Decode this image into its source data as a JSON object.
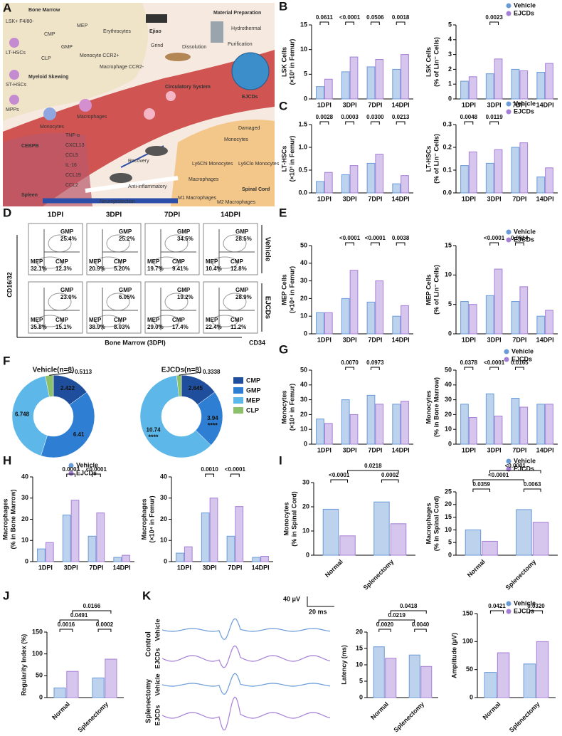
{
  "panel_letters": [
    "A",
    "B",
    "C",
    "D",
    "E",
    "F",
    "G",
    "H",
    "I",
    "J",
    "K"
  ],
  "legend": [
    {
      "name": "Vehicle",
      "color": "#6a9bd8"
    },
    {
      "name": "EJCDs",
      "color": "#a57fd6"
    }
  ],
  "panel_a": {
    "labels": [
      "Bone Marrow",
      "LSK+ F4/80-",
      "LT-HSCs",
      "ST-HSCs",
      "MPPs",
      "CMP",
      "CLP",
      "GMP",
      "MEP",
      "Erythrocytes",
      "Monocyte CCR2+",
      "Macrophage CCR2-",
      "Myeloid Skewing",
      "Macrophages",
      "Monocytes",
      "Circulatory System",
      "Ejiao",
      "Material Preparation",
      "Grind",
      "Dissolution",
      "Hydrothermal",
      "Purification",
      "EJCDs",
      "CEBPB",
      "TNF-α",
      "CXCL13",
      "CCL5",
      "IL-16",
      "CCL19",
      "CCL2",
      "Spleen",
      "Recovery",
      "Anti-inflammatory",
      "Neuroprotection",
      "Damaged",
      "Monocytes",
      "Ly6Chi Monocytes",
      "Ly6Clo Monocytes",
      "Macrophages",
      "M1 Macrophages",
      "M2 Macrophages",
      "Spinal Cord"
    ]
  },
  "flow": {
    "columns": [
      "1DPI",
      "3DPI",
      "7DPI",
      "14DPI"
    ],
    "rows": [
      "Vehicle",
      "EJCDs"
    ],
    "gates": [
      "GMP",
      "MEP",
      "CMP"
    ],
    "values": [
      [
        [
          "25.4%",
          "32.1%",
          "12.3%"
        ],
        [
          "25.2%",
          "20.9%",
          "5.20%"
        ],
        [
          "34.5%",
          "19.7%",
          "9.41%"
        ],
        [
          "28.5%",
          "10.4%",
          "12.8%"
        ]
      ],
      [
        [
          "23.0%",
          "35.8%",
          "15.1%"
        ],
        [
          "6.05%",
          "38.9%",
          "8.03%"
        ],
        [
          "19.2%",
          "29.0%",
          "17.4%"
        ],
        [
          "28.9%",
          "22.4%",
          "11.2%"
        ]
      ]
    ],
    "y_label": "CD16/32",
    "x_label": "CD34",
    "caption": "Bone Marrow (3DPI)"
  },
  "traces": {
    "scale_y": "40 μV",
    "scale_x": "20 ms",
    "groups": [
      "Control",
      "Splenectomy"
    ],
    "rows": [
      "Vehicle",
      "EJCDs"
    ]
  },
  "chart_data": [
    {
      "type": "bar",
      "ylabel": [
        "LSK Cells",
        "(×10³ in Femur)"
      ],
      "categories": [
        "1DPI",
        "3DPI",
        "7DPI",
        "14DPI"
      ],
      "series": [
        {
          "values": [
            2.5,
            5.5,
            6.5,
            6
          ]
        },
        {
          "values": [
            4,
            8.5,
            8,
            9
          ]
        }
      ],
      "ylim": [
        0,
        15
      ],
      "yticks": [
        0,
        5,
        10,
        15
      ],
      "pvalues": [
        "0.0611",
        "<0.0001",
        "0.0506",
        "0.0018"
      ]
    },
    {
      "type": "bar",
      "ylabel": [
        "LSK Cells",
        "(% of Lin⁻ Cells)"
      ],
      "categories": [
        "1DPI",
        "3DPI",
        "7DPI",
        "14DPI"
      ],
      "series": [
        {
          "values": [
            1.2,
            1.7,
            2,
            1.8
          ]
        },
        {
          "values": [
            1.5,
            2.7,
            1.9,
            2.4
          ]
        }
      ],
      "ylim": [
        0,
        5
      ],
      "yticks": [
        0,
        1,
        2,
        3,
        4,
        5
      ],
      "pvalues": [
        null,
        "0.0023",
        null,
        null
      ]
    },
    {
      "type": "bar",
      "ylabel": [
        "LT-HSCs",
        "(×10³ in Femur)"
      ],
      "categories": [
        "1DPI",
        "3DPI",
        "7DPI",
        "14DPI"
      ],
      "series": [
        {
          "values": [
            0.25,
            0.4,
            0.65,
            0.2
          ]
        },
        {
          "values": [
            0.45,
            0.6,
            0.85,
            0.38
          ]
        }
      ],
      "ylim": [
        0,
        1.5
      ],
      "yticks": [
        {
          "value": 0,
          "label": "0.0"
        },
        0.5,
        {
          "value": 1,
          "label": "1.0"
        },
        1.5
      ],
      "pvalues": [
        "0.0028",
        "0.0003",
        "0.0300",
        "0.0213"
      ]
    },
    {
      "type": "bar",
      "ylabel": [
        "LT-HSCs",
        "(% of Lin⁻ Cells)"
      ],
      "categories": [
        "1DPI",
        "3DPI",
        "7DPI",
        "14DPI"
      ],
      "series": [
        {
          "values": [
            0.12,
            0.13,
            0.2,
            0.07
          ]
        },
        {
          "values": [
            0.18,
            0.19,
            0.22,
            0.11
          ]
        }
      ],
      "ylim": [
        0,
        0.3
      ],
      "yticks": [
        {
          "value": 0,
          "label": "0.0"
        },
        0.1,
        0.2,
        0.3
      ],
      "pvalues": [
        "0.0048",
        "0.0119",
        null,
        null
      ]
    },
    {
      "type": "bar",
      "ylabel": [
        "MEP Cells",
        "(×10⁴ in Femur)"
      ],
      "categories": [
        "1DPI",
        "3DPI",
        "7DPI",
        "14DPI"
      ],
      "series": [
        {
          "values": [
            12,
            20,
            18,
            10
          ]
        },
        {
          "values": [
            12,
            36,
            30,
            16
          ]
        }
      ],
      "ylim": [
        0,
        50
      ],
      "yticks": [
        0,
        10,
        20,
        30,
        40,
        50
      ],
      "pvalues": [
        null,
        "<0.0001",
        "<0.0001",
        "0.0038"
      ]
    },
    {
      "type": "bar",
      "ylabel": [
        "MEP Cells",
        "(% of Lin⁻ Cells)"
      ],
      "categories": [
        "1DPI",
        "3DPI",
        "7DPI",
        "14DPI"
      ],
      "series": [
        {
          "values": [
            5.5,
            6.5,
            5.5,
            3
          ]
        },
        {
          "values": [
            5,
            11,
            8,
            4
          ]
        }
      ],
      "ylim": [
        0,
        15
      ],
      "yticks": [
        0,
        5,
        10,
        15
      ],
      "pvalues": [
        null,
        "<0.0001",
        "0.0014",
        null
      ]
    },
    {
      "type": "donut",
      "categories": [
        "CMP",
        "GMP",
        "MEP",
        "CLP"
      ],
      "colors": [
        "#1f4e9c",
        "#2e7fd3",
        "#5db7e8",
        "#8cc06a"
      ],
      "series": [
        {
          "name": "Vehicle(n=8)",
          "values": [
            2.422,
            6.41,
            6.748,
            0.5113
          ]
        },
        {
          "name": "EJCDs(n=8)",
          "values": [
            2.645,
            3.94,
            10.74,
            0.3338
          ]
        }
      ],
      "annotation": "****"
    },
    {
      "type": "bar",
      "ylabel": [
        "Monocytes",
        "(×10⁴ in Femur)"
      ],
      "categories": [
        "1DPI",
        "3DPI",
        "7DPI",
        "14DPI"
      ],
      "series": [
        {
          "values": [
            17,
            30,
            33,
            27
          ]
        },
        {
          "values": [
            14,
            20,
            27,
            29
          ]
        }
      ],
      "ylim": [
        0,
        50
      ],
      "yticks": [
        0,
        10,
        20,
        30,
        40,
        50
      ],
      "pvalues": [
        null,
        "0.0070",
        "0.0973",
        null
      ]
    },
    {
      "type": "bar",
      "ylabel": [
        "Monocytes",
        "(% in Bone Marrow)"
      ],
      "categories": [
        "1DPI",
        "3DPI",
        "7DPI",
        "14DPI"
      ],
      "series": [
        {
          "values": [
            27,
            34,
            31,
            27
          ]
        },
        {
          "values": [
            18,
            19,
            25,
            27
          ]
        }
      ],
      "ylim": [
        0,
        50
      ],
      "yticks": [
        0,
        10,
        20,
        30,
        40,
        50
      ],
      "pvalues": [
        "0.0378",
        "<0.0001",
        "0.0165",
        null
      ]
    },
    {
      "type": "bar",
      "ylabel": [
        "Macrophages",
        "(% in Bone Marrow)"
      ],
      "categories": [
        "1DPI",
        "3DPI",
        "7DPI",
        "14DPI"
      ],
      "series": [
        {
          "values": [
            6,
            22,
            12,
            2
          ]
        },
        {
          "values": [
            9,
            29,
            23,
            3
          ]
        }
      ],
      "ylim": [
        0,
        40
      ],
      "yticks": [
        0,
        10,
        20,
        30,
        40
      ],
      "pvalues": [
        null,
        "0.0003",
        "<0.0001",
        null
      ]
    },
    {
      "type": "bar",
      "ylabel": [
        "Macrophages",
        "(×10⁴ in Femur)"
      ],
      "categories": [
        "1DPI",
        "3DPI",
        "7DPI",
        "14DPI"
      ],
      "series": [
        {
          "values": [
            4,
            23,
            12,
            2
          ]
        },
        {
          "values": [
            7,
            30,
            26,
            2.5
          ]
        }
      ],
      "ylim": [
        0,
        40
      ],
      "yticks": [
        0,
        10,
        20,
        30,
        40
      ],
      "pvalues": [
        null,
        "0.0010",
        "<0.0001",
        null
      ]
    },
    {
      "type": "bar",
      "ylabel": [
        "Monocytes",
        "(% in Spinal Cord)"
      ],
      "categories": [
        "Normal",
        "Splenectomy"
      ],
      "series": [
        {
          "values": [
            19,
            22
          ]
        },
        {
          "values": [
            8,
            13
          ]
        }
      ],
      "ylim": [
        0,
        30
      ],
      "yticks": [
        0,
        10,
        20,
        30
      ],
      "pvalues": [
        "<0.0001",
        "0.0002"
      ],
      "series_pvalues": [
        null,
        "0.0218"
      ],
      "rotate_labels": true
    },
    {
      "type": "bar",
      "ylabel": [
        "Macrophages",
        "(% in Spinal Cord)"
      ],
      "categories": [
        "Normal",
        "Splenectomy"
      ],
      "series": [
        {
          "values": [
            10,
            18
          ]
        },
        {
          "values": [
            5.5,
            13
          ]
        }
      ],
      "ylim": [
        0,
        25
      ],
      "yticks": [
        0,
        5,
        10,
        15,
        20,
        25
      ],
      "pvalues": [
        "0.0359",
        "0.0063"
      ],
      "series_pvalues": [
        "<0.0001",
        "<0.0001"
      ],
      "rotate_labels": true
    },
    {
      "type": "bar",
      "ylabel": [
        "Regularity Index (%)"
      ],
      "categories": [
        "Normal",
        "Splenectomy"
      ],
      "series": [
        {
          "values": [
            22,
            45
          ]
        },
        {
          "values": [
            60,
            88
          ]
        }
      ],
      "ylim": [
        0,
        150
      ],
      "yticks": [
        0,
        50,
        100,
        150
      ],
      "pvalues": [
        "0.0016",
        "0.0002"
      ],
      "series_pvalues": [
        "0.0491",
        "0.0166"
      ],
      "rotate_labels": true
    },
    {
      "type": "bar",
      "ylabel": [
        "Latency (ms)"
      ],
      "categories": [
        "Normal",
        "Splenectomy"
      ],
      "series": [
        {
          "values": [
            15.5,
            13
          ]
        },
        {
          "values": [
            12,
            9.5
          ]
        }
      ],
      "ylim": [
        0,
        20
      ],
      "yticks": [
        0,
        5,
        10,
        15,
        20
      ],
      "pvalues": [
        "0.0020",
        "0.0040"
      ],
      "series_pvalues": [
        "0.0219",
        "0.0418"
      ],
      "rotate_labels": true
    },
    {
      "type": "bar",
      "ylabel": [
        "Amplitude (μV)"
      ],
      "categories": [
        "Normal",
        "Splenectomy"
      ],
      "series": [
        {
          "values": [
            45,
            60
          ]
        },
        {
          "values": [
            80,
            100
          ]
        }
      ],
      "ylim": [
        0,
        150
      ],
      "yticks": [
        0,
        50,
        100,
        150
      ],
      "pvalues": [
        "0.0421",
        "0.0320"
      ],
      "rotate_labels": true
    }
  ]
}
